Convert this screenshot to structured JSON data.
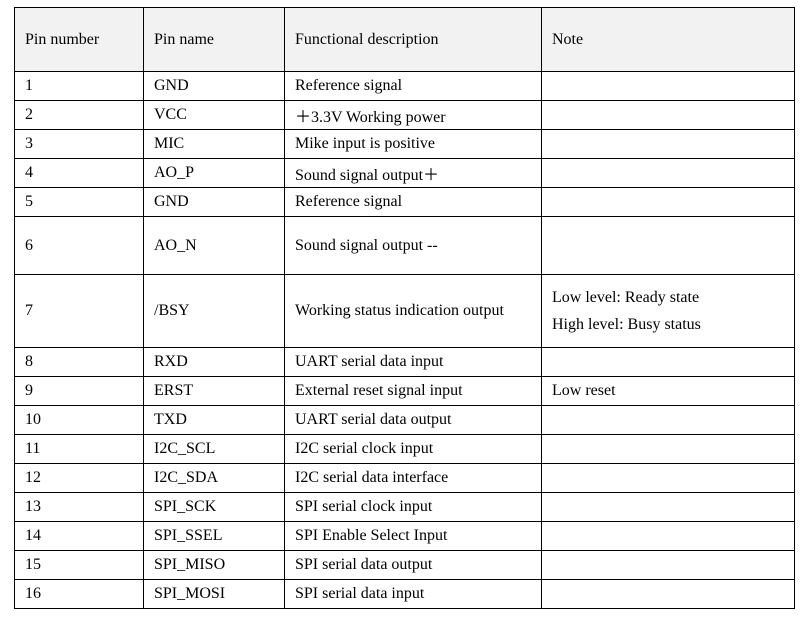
{
  "headers": {
    "pin_number": "Pin number",
    "pin_name": "Pin name",
    "description": "Functional description",
    "note": "Note"
  },
  "rows": [
    {
      "number": "1",
      "name": "GND",
      "description": "Reference signal",
      "note": ""
    },
    {
      "number": "2",
      "name": "VCC",
      "description": "＋3.3V Working power",
      "note": ""
    },
    {
      "number": "3",
      "name": "MIC",
      "description": "Mike input is positive",
      "note": ""
    },
    {
      "number": "4",
      "name": "AO_P",
      "description": "Sound signal output＋",
      "note": ""
    },
    {
      "number": "5",
      "name": "GND",
      "description": "Reference signal",
      "note": ""
    },
    {
      "number": "6",
      "name": "AO_N",
      "description": "Sound signal output --",
      "note": ""
    },
    {
      "number": "7",
      "name": "/BSY",
      "description": "Working status indication output",
      "note_lines": [
        "Low level: Ready state",
        "High level: Busy status"
      ]
    },
    {
      "number": "8",
      "name": "RXD",
      "description": "UART serial data input",
      "note": ""
    },
    {
      "number": "9",
      "name": "ERST",
      "description": "External reset signal input",
      "note": "Low reset"
    },
    {
      "number": "10",
      "name": "TXD",
      "description": "UART serial data output",
      "note": ""
    },
    {
      "number": "11",
      "name": "I2C_SCL",
      "description": "I2C serial clock input",
      "note": ""
    },
    {
      "number": "12",
      "name": "I2C_SDA",
      "description": "I2C serial data interface",
      "note": ""
    },
    {
      "number": "13",
      "name": "SPI_SCK",
      "description": "SPI serial clock input",
      "note": ""
    },
    {
      "number": "14",
      "name": "SPI_SSEL",
      "description": "SPI Enable Select Input",
      "note": ""
    },
    {
      "number": "15",
      "name": "SPI_MISO",
      "description": "SPI serial data output",
      "note": ""
    },
    {
      "number": "16",
      "name": "SPI_MOSI",
      "description": "SPI serial data input",
      "note": ""
    }
  ]
}
